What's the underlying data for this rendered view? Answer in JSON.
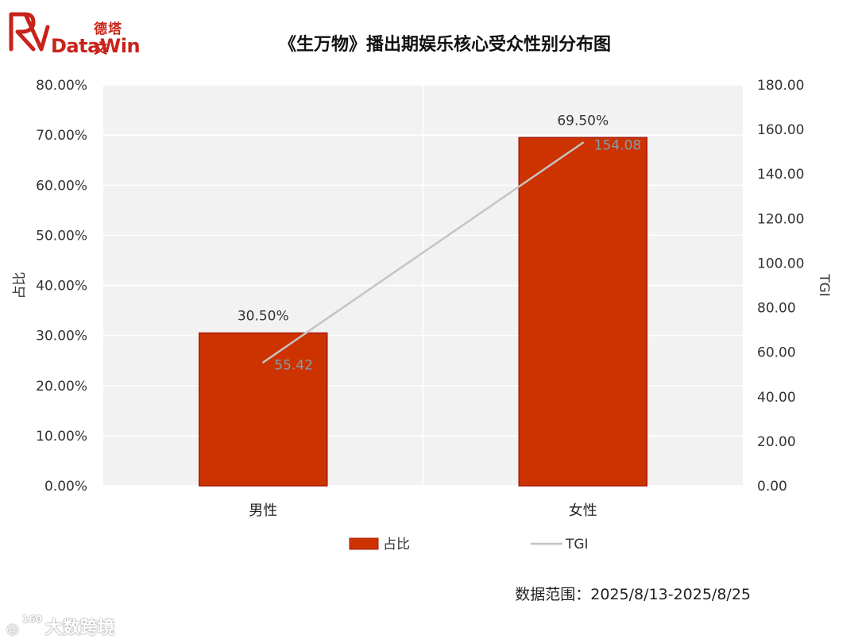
{
  "brand": {
    "name_cn": "德塔文",
    "name_en": "DataWin",
    "color": "#c8231a"
  },
  "source_note": "数据范围：2025/8/13-2025/8/25",
  "watermark": {
    "icon": "weibo-icon",
    "sub": "160",
    "text": "大数跨境"
  },
  "chart_data": {
    "type": "bar",
    "title": "《生万物》播出期娱乐核心受众性别分布图",
    "categories": [
      "男性",
      "女性"
    ],
    "series": [
      {
        "name": "占比",
        "kind": "bar",
        "axis": "left",
        "values": [
          30.5,
          69.5
        ],
        "labels": [
          "30.50%",
          "69.50%"
        ],
        "color": "#cc3300",
        "border": "#a61b0b"
      },
      {
        "name": "TGI",
        "kind": "line",
        "axis": "right",
        "values": [
          55.42,
          154.08
        ],
        "labels": [
          "55.42",
          "154.08"
        ],
        "color": "#c4c4c4",
        "label_color": "#8a9aa9"
      }
    ],
    "ylabel": "占比",
    "y2label": "TGI",
    "ylim": [
      0,
      80
    ],
    "y2lim": [
      0,
      180
    ],
    "yticks": [
      "0.00%",
      "10.00%",
      "20.00%",
      "30.00%",
      "40.00%",
      "50.00%",
      "60.00%",
      "70.00%",
      "80.00%"
    ],
    "y2ticks": [
      "0.00",
      "20.00",
      "40.00",
      "60.00",
      "80.00",
      "100.00",
      "120.00",
      "140.00",
      "160.00",
      "180.00"
    ],
    "grid": true,
    "legend": "bottom",
    "plot_background": "#f2f2f2"
  }
}
